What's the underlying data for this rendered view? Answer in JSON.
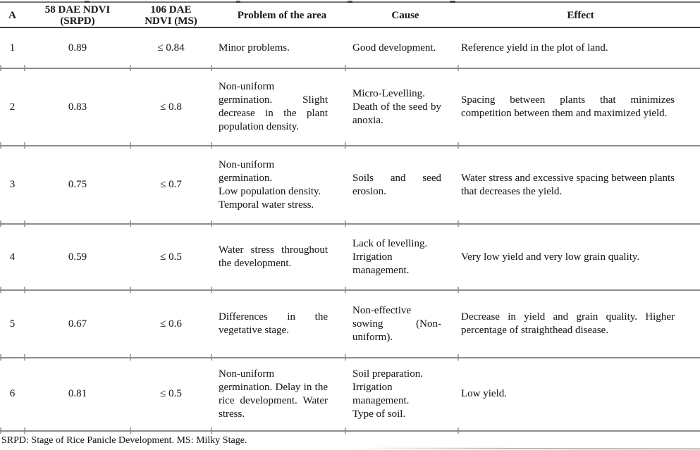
{
  "table": {
    "header": {
      "a": "A",
      "ndvi58": "58 DAE NDVI\n(SRPD)",
      "ndvi106": "106 DAE\nNDVI (MS)",
      "problem": "Problem of the area",
      "cause": "Cause",
      "effect": "Effect"
    },
    "rows": [
      {
        "a": "1",
        "ndvi58": "0.89",
        "ndvi106": "≤ 0.84",
        "problem": "Minor problems.",
        "cause": "Good development.",
        "effect": "Reference yield in the plot of land."
      },
      {
        "a": "2",
        "ndvi58": "0.83",
        "ndvi106": "≤ 0.8",
        "problem": "Non-uniform germination. Slight decrease in the plant population density.",
        "cause": "Micro-Levelling.\nDeath of the seed by anoxia.",
        "effect": "Spacing between plants that minimizes competition between them and maximized yield."
      },
      {
        "a": "3",
        "ndvi58": "0.75",
        "ndvi106": "≤ 0.7",
        "problem": "Non-uniform germination.\nLow population density.\nTemporal water stress.",
        "cause": "Soils and seed erosion.",
        "effect": "Water stress and excessive spacing between plants that decreases the yield."
      },
      {
        "a": "4",
        "ndvi58": "0.59",
        "ndvi106": "≤ 0.5",
        "problem": "Water stress throughout the development.",
        "cause": "Lack of levelling.\nIrrigation management.",
        "effect": "Very low yield and very low grain quality."
      },
      {
        "a": "5",
        "ndvi58": "0.67",
        "ndvi106": "≤ 0.6",
        "problem": "Differences in the vegetative stage.",
        "cause": "Non-effective sowing (Non-uniform).",
        "effect": "Decrease in yield and grain quality. Higher percentage of straighthead disease."
      },
      {
        "a": "6",
        "ndvi58": "0.81",
        "ndvi106": "≤ 0.5",
        "problem": "Non-uniform germination. Delay in the rice development. Water stress.",
        "cause": "Soil preparation.\nIrrigation management.\nType of soil.",
        "effect": "Low yield."
      }
    ],
    "footnote": "SRPD: Stage of Rice Panicle Development. MS: Milky Stage."
  },
  "colors": {
    "text": "#1e1e1e",
    "rule_dark": "#3d3d3d",
    "rule_gray": "#8d8d8d",
    "rule_light": "#ababab",
    "background": "#ffffff"
  }
}
